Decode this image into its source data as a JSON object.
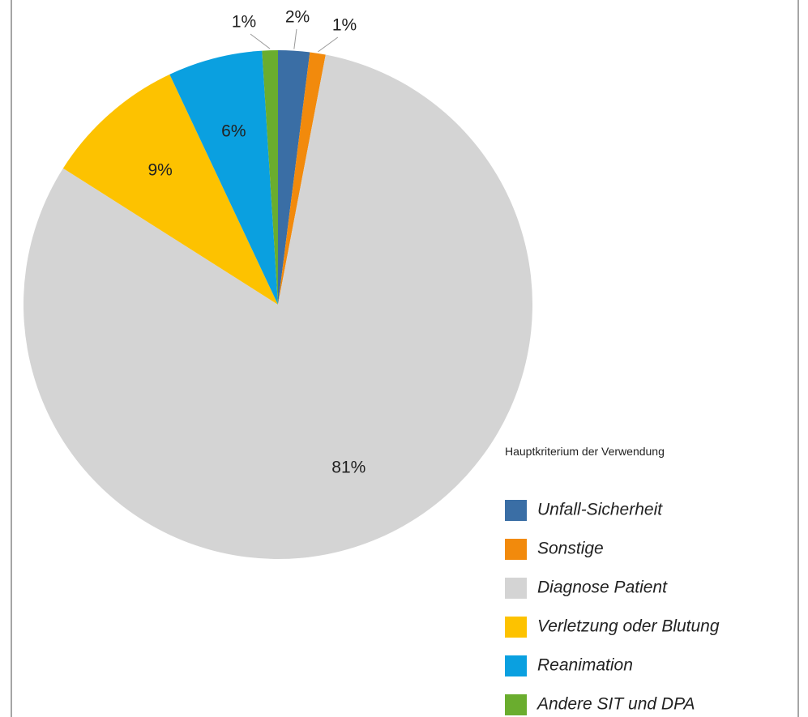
{
  "chart_data": {
    "type": "pie",
    "legend_title": "Hauptkriterium der Verwendung",
    "categories": [
      "Unfall-Sicherheit",
      "Sonstige",
      "Diagnose Patient",
      "Verletzung oder Blutung",
      "Reanimation",
      "Andere SIT und DPA"
    ],
    "values": [
      2,
      1,
      81,
      9,
      6,
      1
    ],
    "value_labels": [
      "2%",
      "1%",
      "81%",
      "9%",
      "6%",
      "1%"
    ],
    "colors": [
      "#3a6ea5",
      "#f28a0c",
      "#d4d4d4",
      "#fdc200",
      "#0aa0e0",
      "#6aad2e"
    ],
    "legend": "right"
  }
}
